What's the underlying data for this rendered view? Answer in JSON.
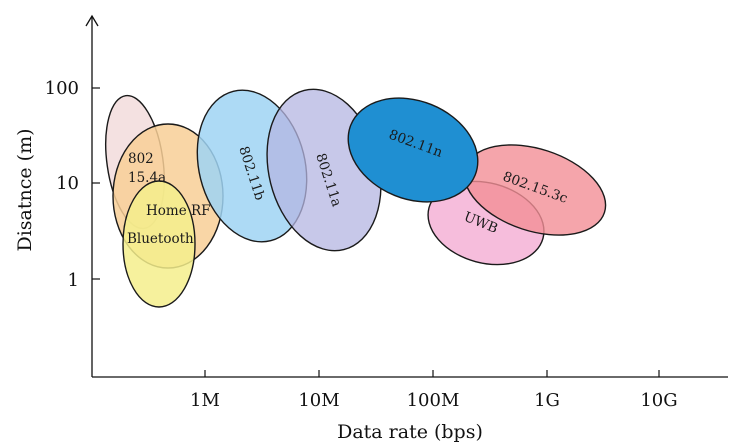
{
  "chart_data": {
    "type": "diagram",
    "xlabel": "Data rate (bps)",
    "ylabel": "Disatnce (m)",
    "x_ticks": [
      "1M",
      "10M",
      "100M",
      "1G",
      "10G"
    ],
    "y_ticks": [
      "100",
      "10",
      "1"
    ],
    "regions": [
      {
        "name": "802 15.4a",
        "label_lines": [
          "802",
          "15.4a"
        ],
        "color": "#f2dcdc"
      },
      {
        "name": "Home RF",
        "label_lines": [
          "Home RF"
        ],
        "color": "#f8cf96"
      },
      {
        "name": "Bluetooth",
        "label_lines": [
          "Bluetooth"
        ],
        "color": "#f4ee8c"
      },
      {
        "name": "802.11b",
        "label_lines": [
          "802.11b"
        ],
        "color": "#9fd3f3"
      },
      {
        "name": "802.11a",
        "label_lines": [
          "802.11a"
        ],
        "color": "#b4b6e2"
      },
      {
        "name": "802.11n",
        "label_lines": [
          "802.11n"
        ],
        "color": "#1f8fd2"
      },
      {
        "name": "UWB",
        "label_lines": [
          "UWB"
        ],
        "color": "#f4b2d6"
      },
      {
        "name": "802.15.3c",
        "label_lines": [
          "802.15.3c"
        ],
        "color": "#f28e96"
      }
    ]
  }
}
